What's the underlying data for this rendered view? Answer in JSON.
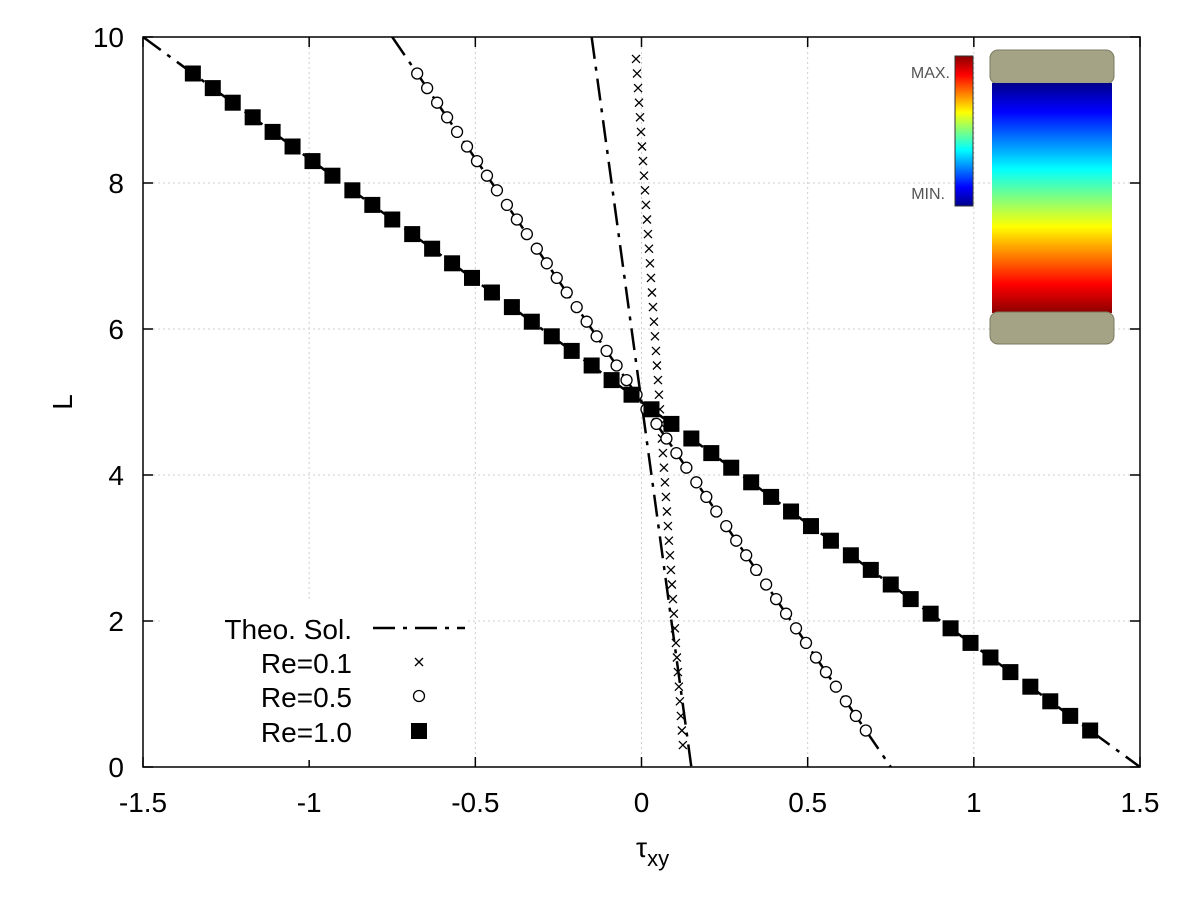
{
  "chart_data": {
    "type": "line",
    "title": "",
    "xlabel": "τ",
    "xlabel_sub": "xy",
    "ylabel": "L",
    "xlim": [
      -1.5,
      1.5
    ],
    "ylim": [
      0,
      10
    ],
    "xticks": [
      -1.5,
      -1,
      -0.5,
      0,
      0.5,
      1,
      1.5
    ],
    "xtick_labels": [
      "-1.5",
      "-1",
      "-0.5",
      "0",
      "0.5",
      "1",
      "1.5"
    ],
    "yticks": [
      0,
      2,
      4,
      6,
      8,
      10
    ],
    "ytick_labels": [
      "0",
      "2",
      "4",
      "6",
      "8",
      "10"
    ],
    "grid": true,
    "legend_position": "bottom-left",
    "theory": {
      "name": "Theo. Sol.",
      "style": "dash-dot",
      "lines": [
        {
          "x": [
            -1.5,
            1.5
          ],
          "y": [
            10,
            0
          ]
        },
        {
          "x": [
            -0.75,
            0.75
          ],
          "y": [
            10,
            0
          ]
        },
        {
          "x": [
            -0.15,
            0.15
          ],
          "y": [
            10,
            0
          ]
        }
      ]
    },
    "series": [
      {
        "name": "Re=0.1",
        "marker": "cross",
        "y": [
          0.3,
          0.5,
          0.7,
          0.9,
          1.1,
          1.3,
          1.5,
          1.7,
          1.9,
          2.1,
          2.3,
          2.5,
          2.7,
          2.9,
          3.1,
          3.3,
          3.5,
          3.7,
          3.9,
          4.1,
          4.3,
          4.5,
          4.7,
          4.9,
          5.1,
          5.3,
          5.5,
          5.7,
          5.9,
          6.1,
          6.3,
          6.5,
          6.7,
          6.9,
          7.1,
          7.3,
          7.5,
          7.7,
          7.9,
          8.1,
          8.3,
          8.5,
          8.7,
          8.9,
          9.1,
          9.3,
          9.5,
          9.7
        ],
        "x": [
          0.1245,
          0.1215,
          0.1185,
          0.1155,
          0.1125,
          0.1095,
          0.1065,
          0.1035,
          0.1005,
          0.0975,
          0.0945,
          0.0915,
          0.0885,
          0.0855,
          0.0825,
          0.0795,
          0.0765,
          0.0735,
          0.0705,
          0.0675,
          0.0645,
          0.0615,
          0.0585,
          0.0555,
          0.0525,
          0.0495,
          0.0465,
          0.0435,
          0.0405,
          0.0375,
          0.0345,
          0.0315,
          0.0285,
          0.0255,
          0.0225,
          0.0195,
          0.0165,
          0.0135,
          0.0105,
          0.0075,
          0.0045,
          0.0015,
          -0.0015,
          -0.0045,
          -0.0075,
          -0.0105,
          -0.0135,
          -0.0165
        ]
      },
      {
        "name": "Re=0.5",
        "marker": "open-circle",
        "y": [
          0.5,
          0.7,
          0.9,
          1.1,
          1.3,
          1.5,
          1.7,
          1.9,
          2.1,
          2.3,
          2.5,
          2.7,
          2.9,
          3.1,
          3.3,
          3.5,
          3.7,
          3.9,
          4.1,
          4.3,
          4.5,
          4.7,
          4.9,
          5.1,
          5.3,
          5.5,
          5.7,
          5.9,
          6.1,
          6.3,
          6.5,
          6.7,
          6.9,
          7.1,
          7.3,
          7.5,
          7.7,
          7.9,
          8.1,
          8.3,
          8.5,
          8.7,
          8.9,
          9.1,
          9.3,
          9.5
        ],
        "x": [
          0.675,
          0.645,
          0.615,
          0.585,
          0.555,
          0.525,
          0.495,
          0.465,
          0.435,
          0.405,
          0.375,
          0.345,
          0.315,
          0.285,
          0.255,
          0.225,
          0.195,
          0.165,
          0.135,
          0.105,
          0.075,
          0.045,
          0.015,
          -0.015,
          -0.045,
          -0.075,
          -0.105,
          -0.135,
          -0.165,
          -0.195,
          -0.225,
          -0.255,
          -0.285,
          -0.315,
          -0.345,
          -0.375,
          -0.405,
          -0.435,
          -0.465,
          -0.495,
          -0.525,
          -0.555,
          -0.585,
          -0.615,
          -0.645,
          -0.675
        ]
      },
      {
        "name": "Re=1.0",
        "marker": "filled-square",
        "y": [
          0.5,
          0.7,
          0.9,
          1.1,
          1.3,
          1.5,
          1.7,
          1.9,
          2.1,
          2.3,
          2.5,
          2.7,
          2.9,
          3.1,
          3.3,
          3.5,
          3.7,
          3.9,
          4.1,
          4.3,
          4.5,
          4.7,
          4.9,
          5.1,
          5.3,
          5.5,
          5.7,
          5.9,
          6.1,
          6.3,
          6.5,
          6.7,
          6.9,
          7.1,
          7.3,
          7.5,
          7.7,
          7.9,
          8.1,
          8.3,
          8.5,
          8.7,
          8.9,
          9.1,
          9.3,
          9.5
        ],
        "x": [
          1.35,
          1.29,
          1.23,
          1.17,
          1.11,
          1.05,
          0.99,
          0.93,
          0.87,
          0.81,
          0.75,
          0.69,
          0.63,
          0.57,
          0.51,
          0.45,
          0.39,
          0.33,
          0.27,
          0.21,
          0.15,
          0.09,
          0.03,
          -0.03,
          -0.09,
          -0.15,
          -0.21,
          -0.27,
          -0.33,
          -0.39,
          -0.45,
          -0.51,
          -0.57,
          -0.63,
          -0.69,
          -0.75,
          -0.81,
          -0.87,
          -0.93,
          -0.99,
          -1.05,
          -1.11,
          -1.17,
          -1.23,
          -1.29,
          -1.35
        ]
      }
    ],
    "inset": {
      "max_label": "MAX.",
      "min_label": "MIN.",
      "colorbar_colors": [
        "#8b0000",
        "#ff0000",
        "#ff7f00",
        "#ffff00",
        "#7fff7f",
        "#00ffff",
        "#0080ff",
        "#0000ff",
        "#00008b"
      ],
      "wall_color": "#a5a386"
    }
  }
}
